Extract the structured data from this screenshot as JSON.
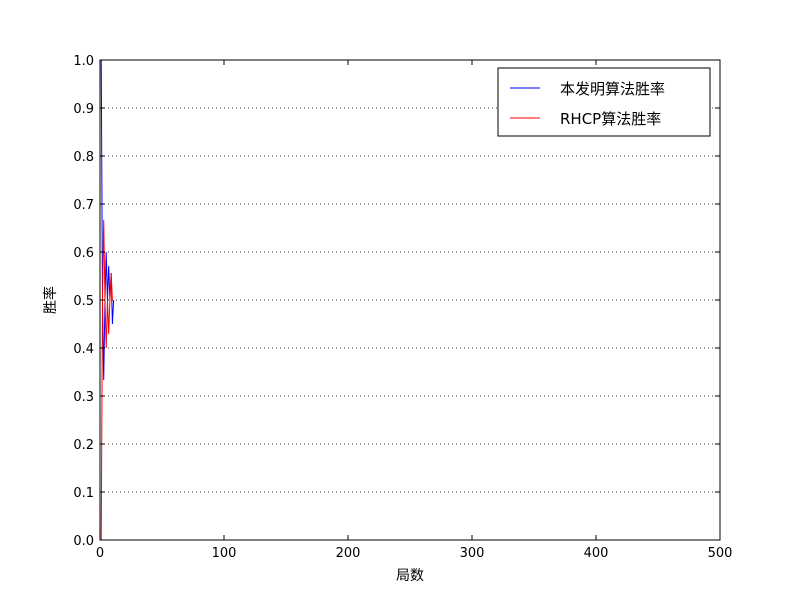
{
  "chart_data": {
    "type": "line",
    "xlabel": "局数",
    "ylabel": "胜率",
    "xlim": [
      0,
      500
    ],
    "ylim": [
      0,
      1.0
    ],
    "xticks": [
      "0",
      "100",
      "200",
      "300",
      "400",
      "500"
    ],
    "yticks": [
      "0.0",
      "0.1",
      "0.2",
      "0.3",
      "0.4",
      "0.5",
      "0.6",
      "0.7",
      "0.8",
      "0.9",
      "1.0"
    ],
    "grid": "horizontal dotted",
    "legend_position": "top-right",
    "series": [
      {
        "name": "本发明算法胜率",
        "color": "#0000ff",
        "x": [
          1,
          2,
          3,
          4,
          5,
          6,
          7,
          8,
          9,
          10,
          11
        ],
        "y": [
          1.0,
          0.5,
          0.333,
          0.5,
          0.6,
          0.5,
          0.571,
          0.5,
          0.556,
          0.45,
          0.5
        ]
      },
      {
        "name": "RHCP算法胜率",
        "color": "#ff0000",
        "x": [
          1,
          2,
          3,
          4,
          5,
          6,
          7,
          8,
          9,
          10
        ],
        "y": [
          0.0,
          0.5,
          0.667,
          0.5,
          0.4,
          0.5,
          0.429,
          0.5,
          0.556,
          0.5
        ]
      }
    ]
  }
}
